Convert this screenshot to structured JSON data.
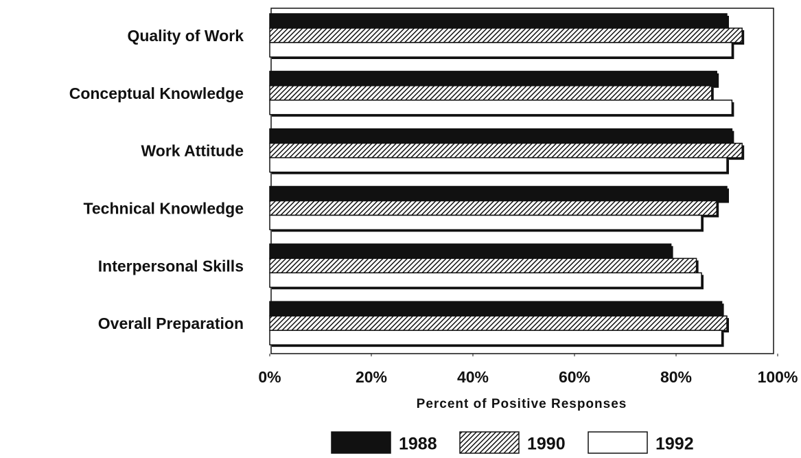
{
  "chart_data": {
    "type": "hbar",
    "categories": [
      "Quality of Work",
      "Conceptual Knowledge",
      "Work Attitude",
      "Technical Knowledge",
      "Interpersonal Skills",
      "Overall Preparation"
    ],
    "series": [
      {
        "name": "1988",
        "color": "#111111",
        "hatch": false,
        "values": [
          90,
          88,
          91,
          90,
          79,
          89
        ]
      },
      {
        "name": "1990",
        "color": "#111111",
        "hatch": true,
        "values": [
          93,
          87,
          93,
          88,
          84,
          90
        ]
      },
      {
        "name": "1992",
        "color": "#ffffff",
        "hatch": false,
        "values": [
          91,
          91,
          90,
          85,
          85,
          89
        ]
      }
    ],
    "xlabel": "Percent of Positive Responses",
    "xlim": [
      0,
      100
    ],
    "xticks": [
      {
        "value": 0,
        "label": "0%"
      },
      {
        "value": 20,
        "label": "20%"
      },
      {
        "value": 40,
        "label": "40%"
      },
      {
        "value": 60,
        "label": "60%"
      },
      {
        "value": 80,
        "label": "80%"
      },
      {
        "value": 100,
        "label": "100%"
      }
    ],
    "legend": "bottom"
  }
}
